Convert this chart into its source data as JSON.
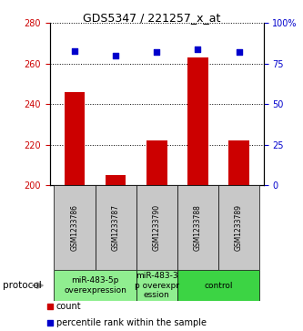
{
  "title": "GDS5347 / 221257_x_at",
  "samples": [
    "GSM1233786",
    "GSM1233787",
    "GSM1233790",
    "GSM1233788",
    "GSM1233789"
  ],
  "bar_values": [
    246,
    205,
    222,
    263,
    222
  ],
  "scatter_values": [
    83,
    80,
    82,
    84,
    82
  ],
  "ylim_left": [
    200,
    280
  ],
  "ylim_right": [
    0,
    100
  ],
  "yticks_left": [
    200,
    220,
    240,
    260,
    280
  ],
  "yticks_right": [
    0,
    25,
    50,
    75,
    100
  ],
  "bar_color": "#cc0000",
  "scatter_color": "#0000cc",
  "bar_width": 0.5,
  "group_defs": [
    {
      "indices": [
        0,
        1
      ],
      "label": "miR-483-5p\noverexpression",
      "color": "#90ee90"
    },
    {
      "indices": [
        2
      ],
      "label": "miR-483-3\np overexpr\nession",
      "color": "#90ee90"
    },
    {
      "indices": [
        3,
        4
      ],
      "label": "control",
      "color": "#3cd444"
    }
  ],
  "protocol_label": "protocol",
  "legend_bar_label": "count",
  "legend_scatter_label": "percentile rank within the sample",
  "sample_box_color": "#c8c8c8",
  "title_fontsize": 9,
  "tick_fontsize": 7,
  "sample_fontsize": 5.5,
  "group_fontsize": 6.5,
  "legend_fontsize": 7
}
